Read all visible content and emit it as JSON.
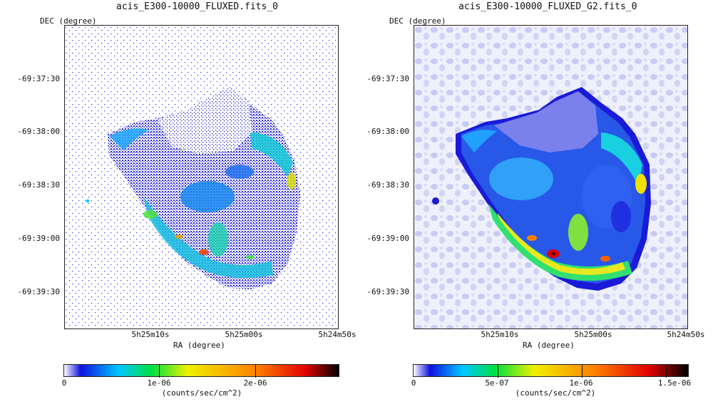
{
  "panels": [
    {
      "title": "acis_E300-10000_FLUXED.fits_0",
      "y_axis_label": "DEC (degree)",
      "x_axis_label": "RA (degree)",
      "y_ticks": [
        "-69:37:30",
        "-69:38:00",
        "-69:38:30",
        "-69:39:00",
        "-69:39:30"
      ],
      "x_ticks": [
        "5h25m10s",
        "5h25m00s",
        "5h24m50s"
      ],
      "colorbar": {
        "tick_labels": [
          "0",
          "1e-06",
          "2e-06"
        ],
        "units": "(counts/sec/cm^2)"
      }
    },
    {
      "title": "acis_E300-10000_FLUXED_G2.fits_0",
      "y_axis_label": "DEC (degree)",
      "x_axis_label": "RA (degree)",
      "y_ticks": [
        "-69:37:30",
        "-69:38:00",
        "-69:38:30",
        "-69:39:00",
        "-69:39:30"
      ],
      "x_ticks": [
        "5h25m10s",
        "5h25m00s",
        "5h24m50s"
      ],
      "colorbar": {
        "tick_labels": [
          "0",
          "5e-07",
          "1e-06",
          "1.5e-06"
        ],
        "units": "(counts/sec/cm^2)"
      }
    }
  ],
  "colormap": [
    "#ffffff",
    "#1010e0",
    "#00c8ff",
    "#00e040",
    "#f0f000",
    "#ff8000",
    "#e00000",
    "#000000"
  ]
}
